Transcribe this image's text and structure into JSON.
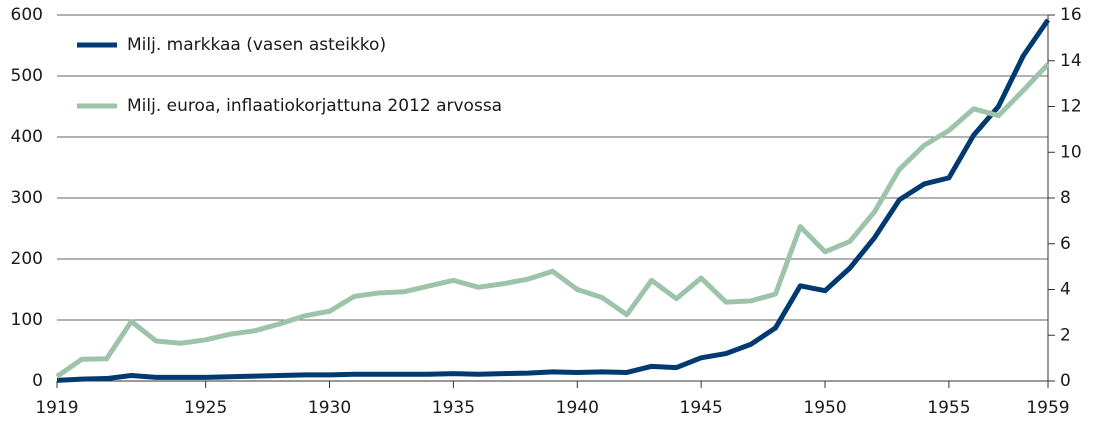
{
  "chart_data": {
    "type": "line",
    "x": [
      1919,
      1920,
      1921,
      1922,
      1923,
      1924,
      1925,
      1926,
      1927,
      1928,
      1929,
      1930,
      1931,
      1932,
      1933,
      1934,
      1935,
      1936,
      1937,
      1938,
      1939,
      1940,
      1941,
      1942,
      1943,
      1944,
      1945,
      1946,
      1947,
      1948,
      1949,
      1950,
      1951,
      1952,
      1953,
      1954,
      1955,
      1956,
      1957,
      1958,
      1959
    ],
    "series": [
      {
        "name": "Milj. markkaa (vasen asteikko)",
        "color": "#003a70",
        "values": [
          1,
          3,
          4,
          9,
          6,
          6,
          6,
          7,
          8,
          9,
          10,
          10,
          11,
          11,
          11,
          11,
          12,
          11,
          12,
          13,
          15,
          14,
          15,
          14,
          24,
          22,
          38,
          45,
          60,
          87,
          156,
          148,
          185,
          235,
          297,
          323,
          333,
          403,
          450,
          533,
          592
        ]
      },
      {
        "name": "Milj. euroa, inflaatiokorjattuna 2012 arvossa",
        "color": "#9dc4a8",
        "axis": "y2",
        "values": [
          0.2,
          0.95,
          0.97,
          2.6,
          1.75,
          1.65,
          1.8,
          2.05,
          2.2,
          2.5,
          2.85,
          3.05,
          3.7,
          3.85,
          3.9,
          4.15,
          4.4,
          4.1,
          4.25,
          4.45,
          4.8,
          4.0,
          3.65,
          2.9,
          4.4,
          3.6,
          4.5,
          3.45,
          3.5,
          3.8,
          6.75,
          5.65,
          6.1,
          7.4,
          9.25,
          10.3,
          10.95,
          11.9,
          11.6,
          12.7,
          13.85
        ]
      }
    ],
    "xlim": [
      1919,
      1959
    ],
    "xticks": [
      1919,
      1925,
      1930,
      1935,
      1940,
      1945,
      1950,
      1955,
      1959
    ],
    "ylim": [
      0,
      600
    ],
    "yticks": [
      0,
      100,
      200,
      300,
      400,
      500,
      600
    ],
    "y2lim": [
      0,
      16
    ],
    "y2ticks": [
      0,
      2,
      4,
      6,
      8,
      10,
      12,
      14,
      16
    ],
    "grid": true,
    "legend": "upper left"
  }
}
